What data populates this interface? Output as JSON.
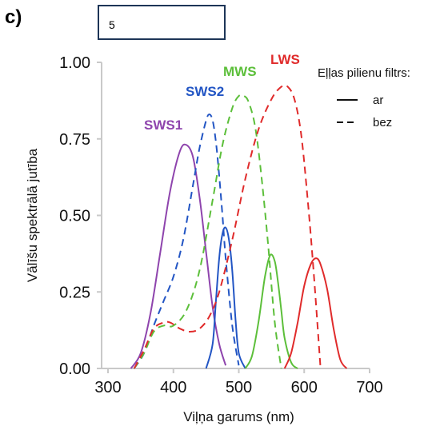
{
  "panel_label": "c)",
  "answer_box": {
    "value": "5"
  },
  "chart_data": {
    "type": "line",
    "xlabel": "Viļņa garums (nm)",
    "ylabel": "Vālīšu spektrālā jutība",
    "xlim": [
      300,
      700
    ],
    "ylim": [
      0,
      1
    ],
    "xticks": [
      300,
      400,
      500,
      600,
      700
    ],
    "yticks": [
      0.0,
      0.25,
      0.5,
      0.75,
      1.0
    ],
    "ytick_labels": [
      "0.00",
      "0.25",
      "0.50",
      "0.75",
      "1.00"
    ],
    "grid": false,
    "legend": {
      "title": "Eļļas pilienu filtrs:",
      "placement": "top-right",
      "entries": [
        {
          "label": "ar",
          "style": "solid"
        },
        {
          "label": "bez",
          "style": "dashed"
        }
      ]
    },
    "series": [
      {
        "name": "SWS1",
        "style": "solid",
        "color": "#8e44ad",
        "x": [
          335,
          350,
          365,
          380,
          395,
          410,
          420,
          430,
          440,
          450,
          460,
          470,
          480
        ],
        "y": [
          0.0,
          0.05,
          0.18,
          0.38,
          0.58,
          0.71,
          0.73,
          0.69,
          0.56,
          0.38,
          0.2,
          0.08,
          0.01
        ]
      },
      {
        "name": "SWS2",
        "style": "solid",
        "color": "#2255c4",
        "x": [
          450,
          460,
          465,
          470,
          475,
          480,
          485,
          490,
          495,
          500,
          510
        ],
        "y": [
          0.0,
          0.08,
          0.22,
          0.36,
          0.44,
          0.46,
          0.42,
          0.32,
          0.16,
          0.05,
          0.0
        ]
      },
      {
        "name": "MWS",
        "style": "solid",
        "color": "#5cbf3a",
        "x": [
          510,
          520,
          530,
          540,
          548,
          555,
          560,
          565,
          570,
          580,
          590
        ],
        "y": [
          0.0,
          0.04,
          0.15,
          0.3,
          0.37,
          0.35,
          0.28,
          0.19,
          0.1,
          0.02,
          0.0
        ]
      },
      {
        "name": "LWS",
        "style": "solid",
        "color": "#e02b2b",
        "x": [
          570,
          580,
          590,
          600,
          610,
          618,
          625,
          635,
          645,
          655,
          665
        ],
        "y": [
          0.0,
          0.05,
          0.15,
          0.27,
          0.34,
          0.36,
          0.34,
          0.26,
          0.13,
          0.03,
          0.0
        ]
      },
      {
        "name": "SWS2",
        "style": "dashed",
        "color": "#2255c4",
        "x": [
          340,
          355,
          370,
          385,
          400,
          415,
          430,
          440,
          450,
          455,
          460,
          465,
          470,
          475,
          480,
          490,
          500
        ],
        "y": [
          0.0,
          0.05,
          0.14,
          0.22,
          0.3,
          0.42,
          0.6,
          0.72,
          0.81,
          0.83,
          0.81,
          0.74,
          0.63,
          0.5,
          0.36,
          0.14,
          0.01
        ]
      },
      {
        "name": "MWS",
        "style": "dashed",
        "color": "#5cbf3a",
        "x": [
          340,
          355,
          370,
          385,
          400,
          420,
          440,
          460,
          475,
          490,
          500,
          508,
          515,
          525,
          535,
          545,
          555,
          565
        ],
        "y": [
          0.0,
          0.05,
          0.12,
          0.14,
          0.14,
          0.19,
          0.32,
          0.55,
          0.73,
          0.85,
          0.89,
          0.89,
          0.87,
          0.79,
          0.62,
          0.4,
          0.15,
          0.0
        ]
      },
      {
        "name": "LWS",
        "style": "dashed",
        "color": "#e02b2b",
        "x": [
          340,
          355,
          370,
          385,
          395,
          410,
          425,
          440,
          455,
          470,
          490,
          510,
          530,
          550,
          565,
          575,
          585,
          595,
          605,
          615,
          625
        ],
        "y": [
          0.0,
          0.06,
          0.13,
          0.15,
          0.15,
          0.13,
          0.12,
          0.13,
          0.17,
          0.25,
          0.42,
          0.62,
          0.78,
          0.88,
          0.92,
          0.92,
          0.88,
          0.77,
          0.56,
          0.3,
          0.0
        ]
      }
    ],
    "annotations": [
      {
        "text": "SWS1",
        "color": "#8e44ad"
      },
      {
        "text": "SWS2",
        "color": "#2255c4"
      },
      {
        "text": "MWS",
        "color": "#5cbf3a"
      },
      {
        "text": "LWS",
        "color": "#e02b2b"
      }
    ]
  }
}
